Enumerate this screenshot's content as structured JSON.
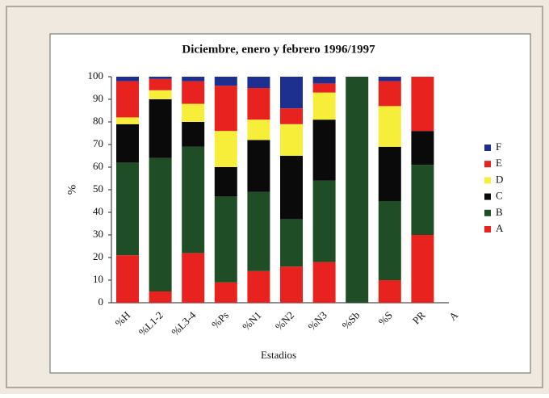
{
  "chart_data": {
    "type": "stacked_bar",
    "title": "Diciembre, enero y febrero 1996/1997",
    "x_label": "Estadios",
    "y_label": "%",
    "categories": [
      "%H",
      "%L1-2",
      "%L3-4",
      "%Ps",
      "%N1",
      "%N2",
      "%N3",
      "%Sb",
      "%S",
      "PR",
      "A"
    ],
    "series": [
      {
        "name": "A",
        "color": "#e8231f",
        "values": [
          21,
          5,
          22,
          9,
          14,
          16,
          18,
          0,
          10,
          30,
          null
        ]
      },
      {
        "name": "B",
        "color": "#1f4d26",
        "values": [
          41,
          59,
          47,
          38,
          35,
          21,
          36,
          100,
          35,
          31,
          null
        ]
      },
      {
        "name": "C",
        "color": "#0a0a0a",
        "values": [
          17,
          26,
          11,
          13,
          23,
          28,
          27,
          0,
          24,
          15,
          null
        ]
      },
      {
        "name": "D",
        "color": "#f7ee3a",
        "values": [
          3,
          4,
          8,
          16,
          9,
          14,
          12,
          0,
          18,
          0,
          null
        ]
      },
      {
        "name": "E",
        "color": "#e8231f",
        "values": [
          16,
          5,
          10,
          20,
          14,
          7,
          4,
          0,
          11,
          24,
          null
        ]
      },
      {
        "name": "F",
        "color": "#1d2f8f",
        "values": [
          2,
          1,
          2,
          4,
          5,
          14,
          3,
          0,
          2,
          0,
          null
        ]
      }
    ],
    "ylim": [
      0,
      100
    ],
    "yticks": [
      0,
      10,
      20,
      30,
      40,
      50,
      60,
      70,
      80,
      90,
      100
    ],
    "grid": false,
    "legend": "right"
  }
}
